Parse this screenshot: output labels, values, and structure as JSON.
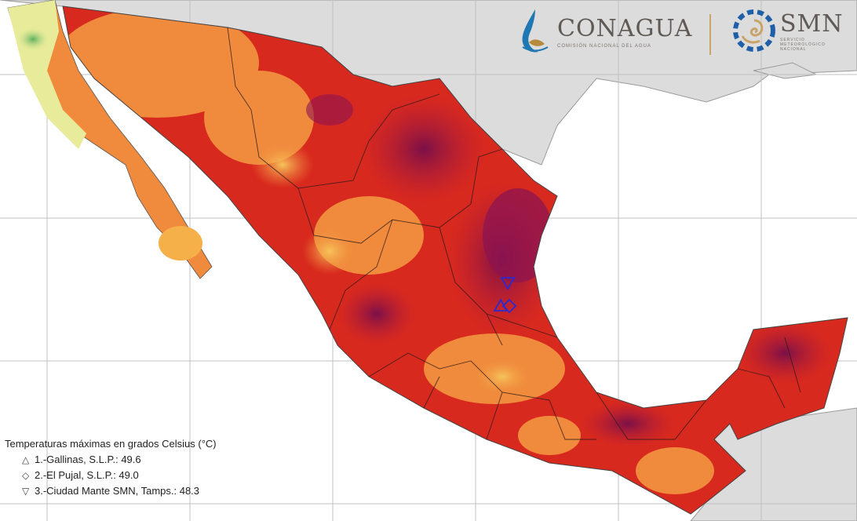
{
  "logos": {
    "conagua": {
      "name": "CONAGUA",
      "subtitle": "COMISIÓN NACIONAL DEL AGUA"
    },
    "smn": {
      "name": "SMN",
      "subtitle_lines": [
        "SERVICIO",
        "METEOROLÓGICO",
        "NACIONAL"
      ]
    }
  },
  "legend": {
    "title": "Temperaturas máximas en grados Celsius (°C)",
    "items": [
      {
        "symbol": "△",
        "text": "1.-Gallinas, S.L.P.: 49.6"
      },
      {
        "symbol": "◇",
        "text": "2.-El Pujal, S.L.P.: 49.0"
      },
      {
        "symbol": "▽",
        "text": "3.-Ciudad Mante SMN, Tamps.: 48.3"
      }
    ]
  },
  "stations": [
    {
      "name": "Gallinas, S.L.P.",
      "value": 49.6,
      "symbol": "triangle-up"
    },
    {
      "name": "El Pujal, S.L.P.",
      "value": 49.0,
      "symbol": "diamond"
    },
    {
      "name": "Ciudad Mante SMN, Tamps.",
      "value": 48.3,
      "symbol": "triangle-down"
    }
  ],
  "colors": {
    "ocean": "#ffffff",
    "land_other": "#dcdcdc",
    "grid": "#b8b8b8",
    "temp_low": "#f3e27a",
    "temp_mid": "#f08a3c",
    "temp_high": "#d8291e",
    "temp_max": "#8e1450",
    "cool": "#7cc07a",
    "marker": "#2a2ad0"
  }
}
